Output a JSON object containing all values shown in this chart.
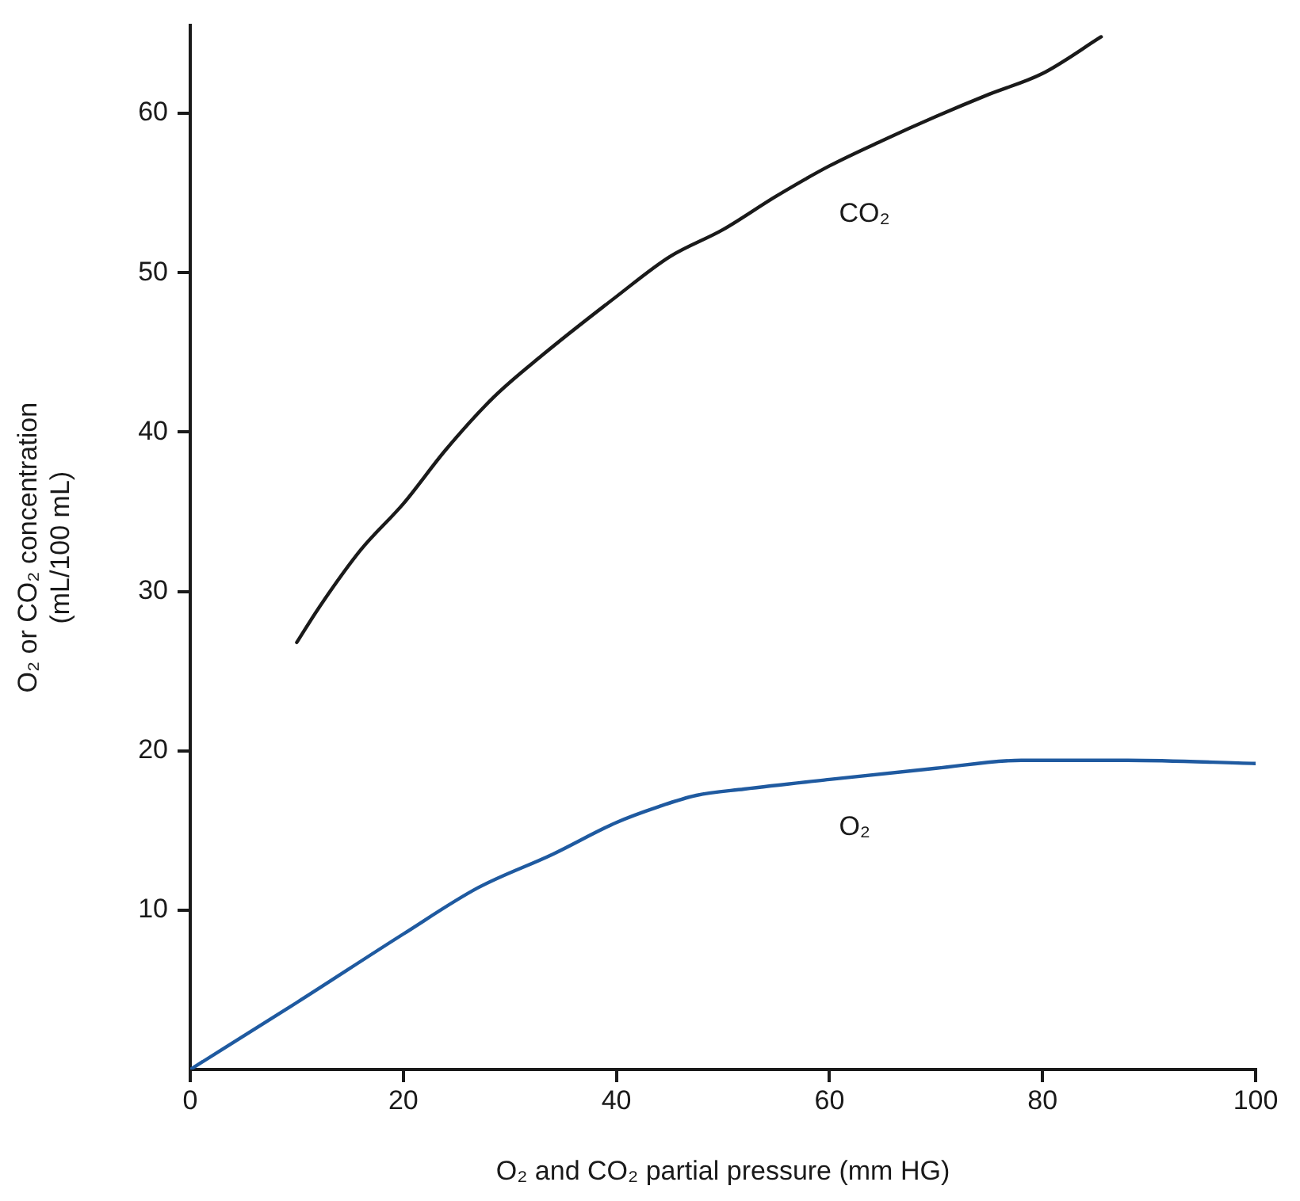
{
  "chart_data": {
    "type": "line",
    "xlabel": "O₂ and CO₂ partial pressure (mm HG)",
    "ylabel": "O₂ or CO₂ concentration (mL/100 mL)",
    "xlim": [
      0,
      100
    ],
    "xticks": [
      0,
      20,
      40,
      60,
      80,
      100
    ],
    "ylim": [
      0,
      65.5
    ],
    "yticks": [
      10,
      20,
      30,
      40,
      50,
      60
    ],
    "grid": false,
    "legend": false,
    "marker": "none",
    "line_style": "solid",
    "series": [
      {
        "name": "CO₂",
        "color": "#1a1a1a",
        "x": [
          10,
          12,
          16,
          20,
          24,
          28.5,
          33,
          40,
          45,
          50,
          55,
          60,
          65,
          70,
          75,
          80,
          85.5
        ],
        "values": [
          26.8,
          28.9,
          32.6,
          35.5,
          38.9,
          42.2,
          44.8,
          48.5,
          51,
          52.7,
          54.8,
          56.7,
          58.3,
          59.8,
          61.2,
          62.5,
          64.8
        ]
      },
      {
        "name": "O₂",
        "color": "#1f5aa0",
        "x": [
          0,
          10,
          20,
          27,
          34,
          40,
          44,
          47.5,
          52,
          60,
          70,
          78,
          88,
          100
        ],
        "values": [
          0,
          4.2,
          8.5,
          11.4,
          13.5,
          15.5,
          16.5,
          17.2,
          17.6,
          18.2,
          18.9,
          19.4,
          19.4,
          19.2
        ]
      }
    ]
  }
}
